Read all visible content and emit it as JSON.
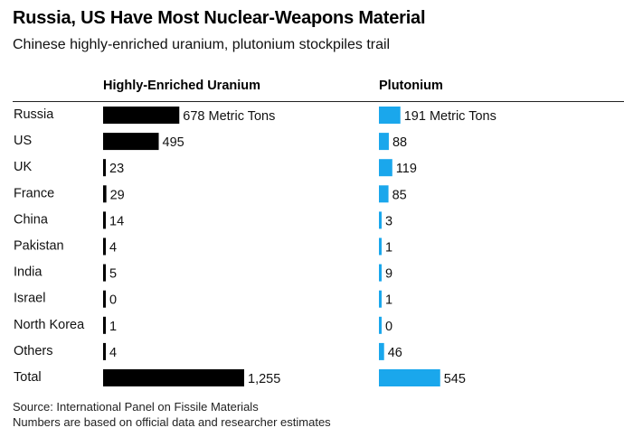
{
  "colors": {
    "heu": "#000000",
    "plutonium": "#1aa7ec"
  },
  "chart_data": {
    "type": "bar",
    "orientation": "horizontal",
    "title": "Russia, US Have Most Nuclear-Weapons Material",
    "subtitle": "Chinese highly-enriched uranium, plutonium stockpiles trail",
    "categories": [
      "Russia",
      "US",
      "UK",
      "France",
      "China",
      "Pakistan",
      "India",
      "Israel",
      "North Korea",
      "Others",
      "Total"
    ],
    "series": [
      {
        "name": "Highly-Enriched Uranium",
        "values": [
          678,
          495,
          23,
          29,
          14,
          4,
          5,
          0,
          1,
          4,
          1255
        ],
        "labels": [
          "678 Metric Tons",
          "495",
          "23",
          "29",
          "14",
          "4",
          "5",
          "0",
          "1",
          "4",
          "1,255"
        ]
      },
      {
        "name": "Plutonium",
        "values": [
          191,
          88,
          119,
          85,
          3,
          1,
          9,
          1,
          0,
          46,
          545
        ],
        "labels": [
          "191 Metric Tons",
          "88",
          "119",
          "85",
          "3",
          "1",
          "9",
          "1",
          "0",
          "46",
          "545"
        ]
      }
    ],
    "source": "Source: International Panel on Fissile Materials",
    "note": "Numbers are based on official data and researcher estimates"
  }
}
